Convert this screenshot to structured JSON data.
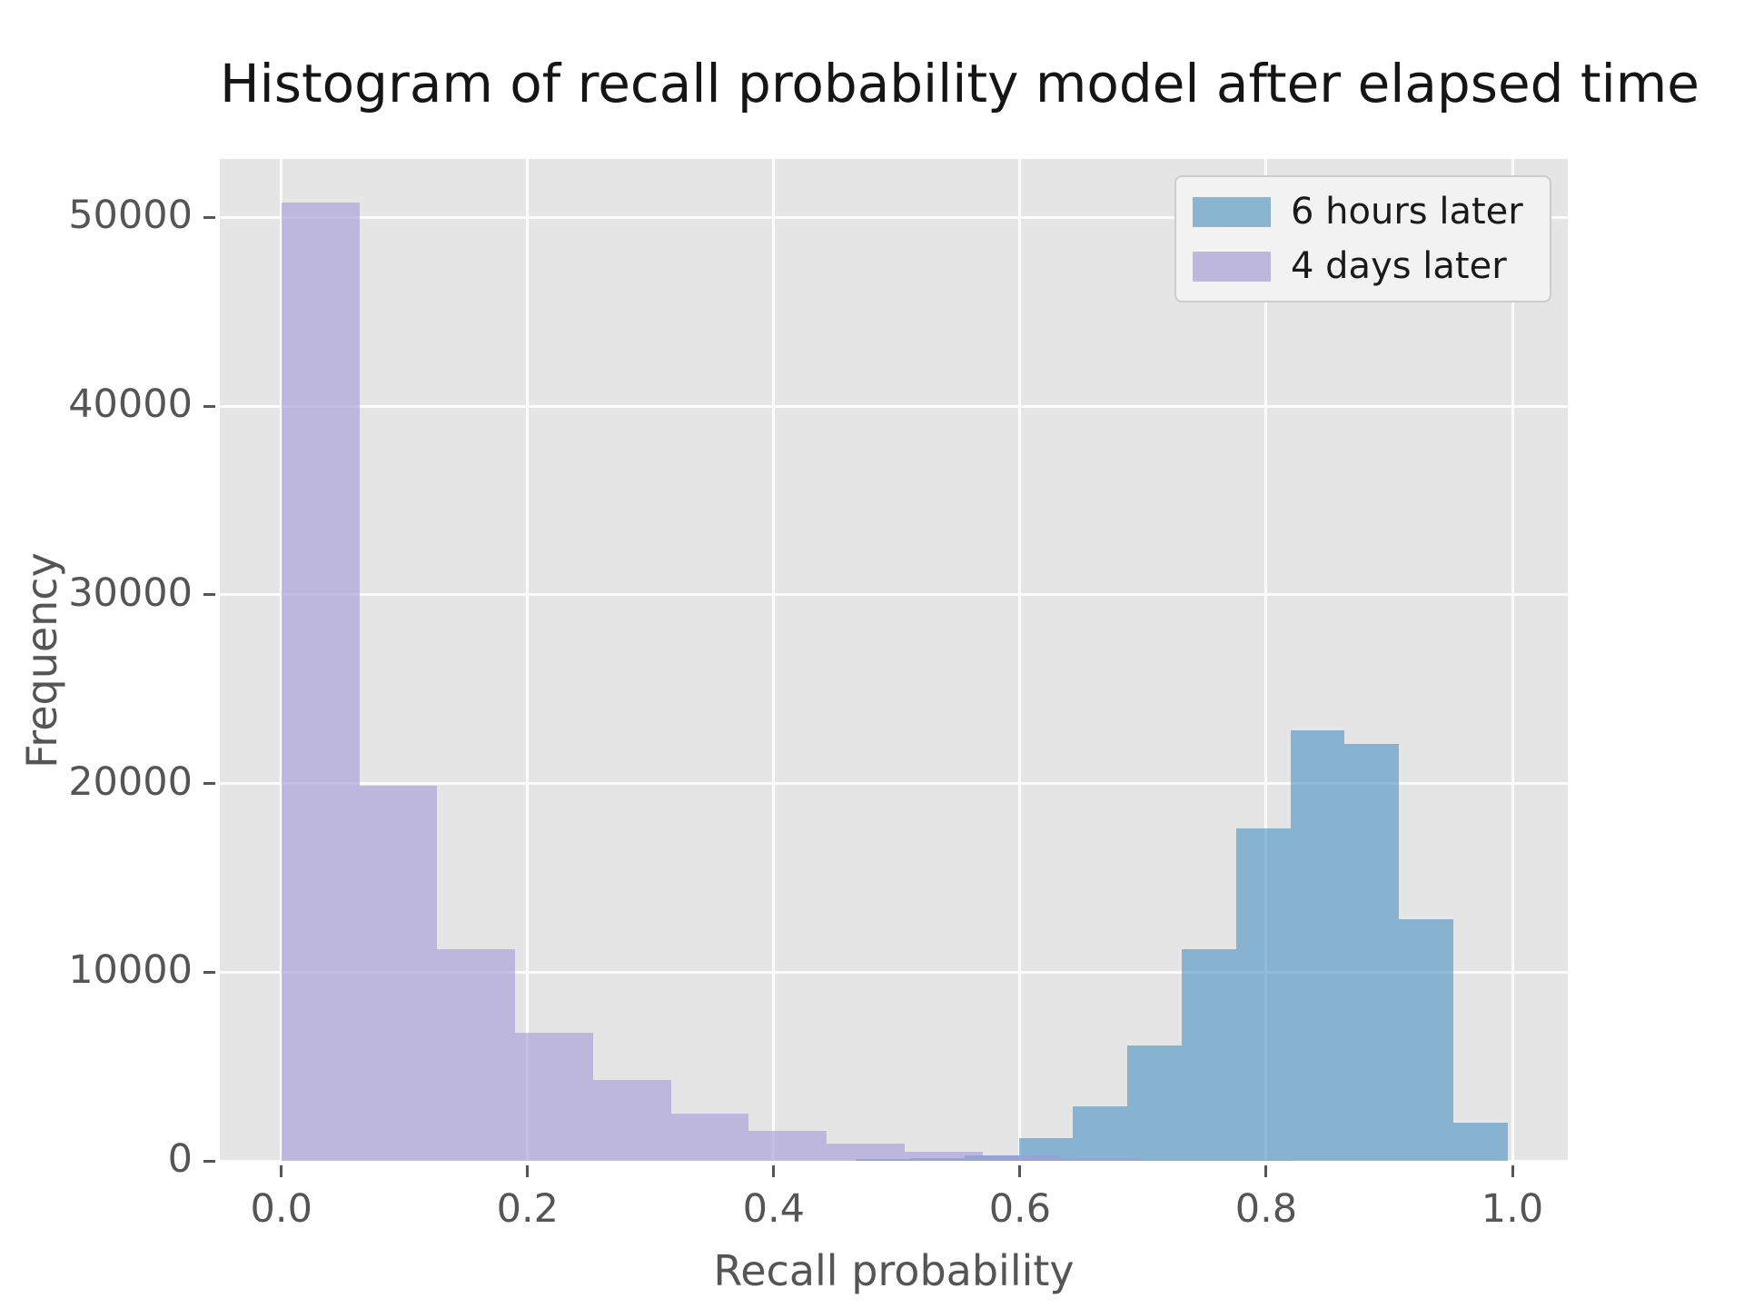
{
  "chart_data": {
    "type": "histogram",
    "title": "Histogram of recall probability model after elapsed time",
    "xlabel": "Recall probability",
    "ylabel": "Frequency",
    "xlim": [
      -0.05,
      1.045
    ],
    "ylim": [
      0,
      53100
    ],
    "grid": true,
    "plot_background": "#e5e5e5",
    "grid_color": "#fbfbfb",
    "x_ticks": [
      {
        "value": 0.0,
        "label": "0.0"
      },
      {
        "value": 0.2,
        "label": "0.2"
      },
      {
        "value": 0.4,
        "label": "0.4"
      },
      {
        "value": 0.6,
        "label": "0.6"
      },
      {
        "value": 0.8,
        "label": "0.8"
      },
      {
        "value": 1.0,
        "label": "1.0"
      }
    ],
    "y_ticks": [
      {
        "value": 0,
        "label": "0"
      },
      {
        "value": 10000,
        "label": "10000"
      },
      {
        "value": 20000,
        "label": "20000"
      },
      {
        "value": 30000,
        "label": "30000"
      },
      {
        "value": 40000,
        "label": "40000"
      },
      {
        "value": 50000,
        "label": "50000"
      }
    ],
    "legend_position": "upper right",
    "series": [
      {
        "name": "6 hours later",
        "fill_color": "rgba(77,149,196,0.62)",
        "legend_color": "#8ab5d1",
        "bin_start": 0.114,
        "bin_width": 0.0441,
        "counts": [
          0,
          0,
          0,
          0,
          0,
          0,
          0,
          0,
          80,
          150,
          280,
          1200,
          2900,
          6100,
          11200,
          17600,
          22800,
          22100,
          12800,
          2000
        ]
      },
      {
        "name": "4 days later",
        "fill_color": "rgba(162,152,216,0.6)",
        "legend_color": "#bdb7dd",
        "bin_start": 0.0,
        "bin_width": 0.0633,
        "counts": [
          50800,
          19900,
          11200,
          6800,
          4300,
          2500,
          1600,
          900,
          500,
          300,
          150,
          60,
          30,
          15,
          8
        ]
      }
    ]
  }
}
